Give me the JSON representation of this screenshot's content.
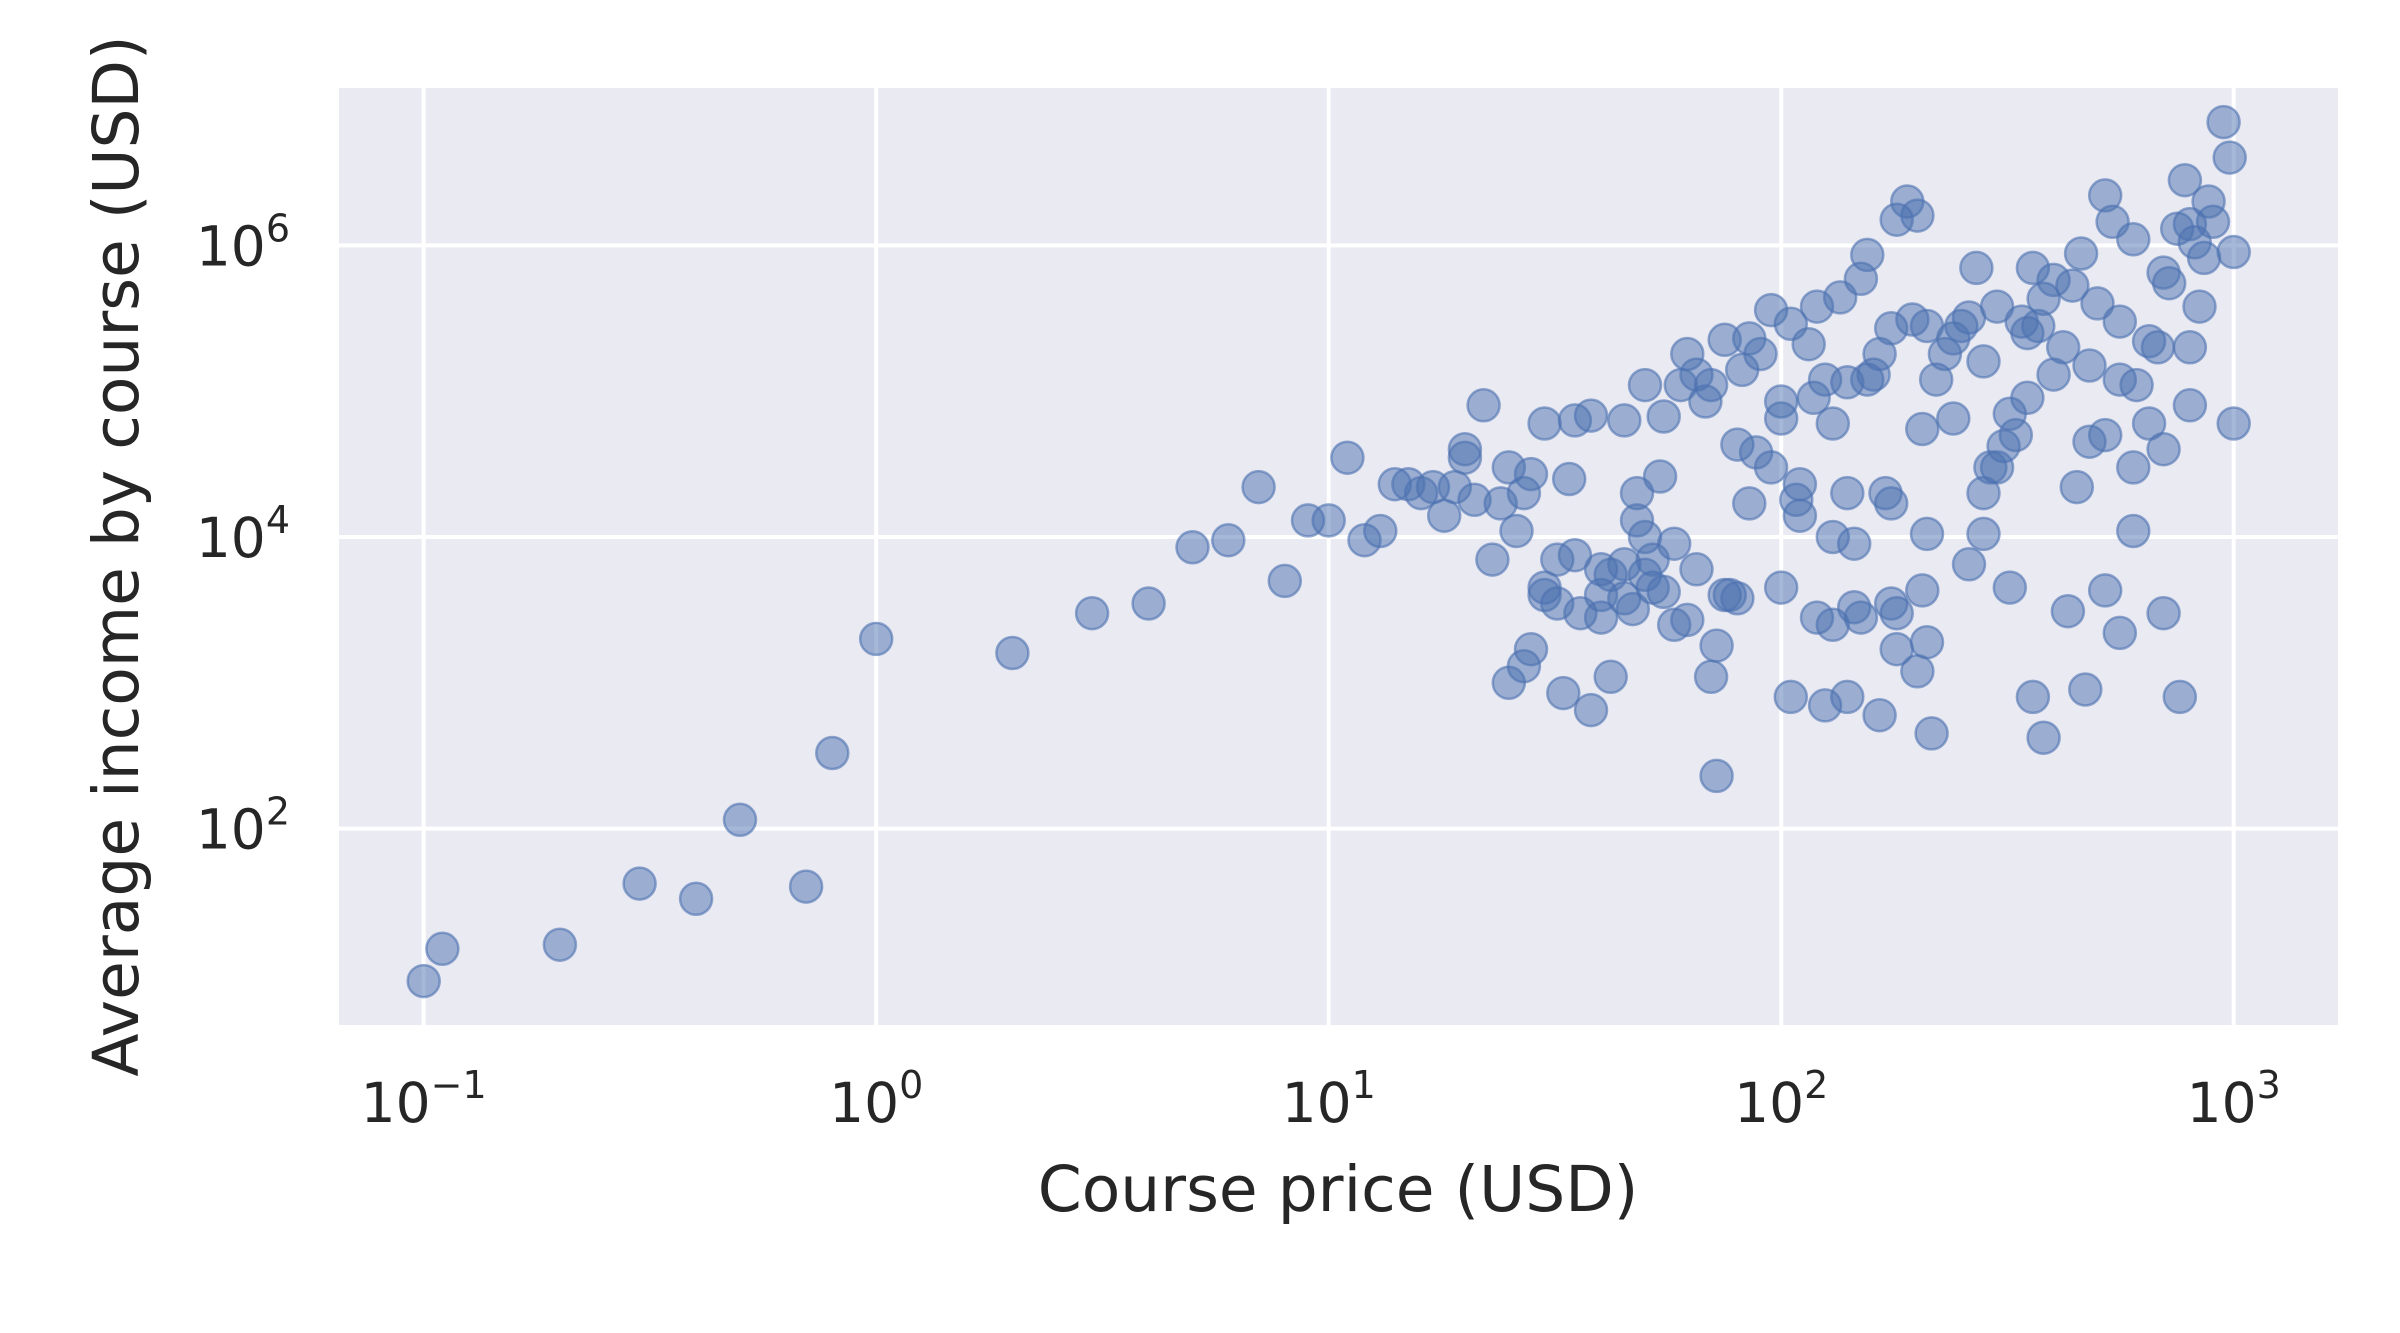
{
  "chart_data": {
    "type": "scatter",
    "title": "",
    "xlabel": "Course price (USD)",
    "ylabel": "Average income by course (USD)",
    "x_scale": "log",
    "y_scale": "log",
    "xlim": [
      0.065,
      1700
    ],
    "ylim": [
      4.5,
      12000000
    ],
    "x_ticks": [
      0.1,
      1,
      10,
      100,
      1000
    ],
    "x_tick_labels": [
      {
        "base": "10",
        "exp": "−1"
      },
      {
        "base": "10",
        "exp": "0"
      },
      {
        "base": "10",
        "exp": "1"
      },
      {
        "base": "10",
        "exp": "2"
      },
      {
        "base": "10",
        "exp": "3"
      }
    ],
    "y_ticks": [
      100,
      10000,
      1000000
    ],
    "y_tick_labels": [
      {
        "base": "10",
        "exp": "2"
      },
      {
        "base": "10",
        "exp": "4"
      },
      {
        "base": "10",
        "exp": "6"
      }
    ],
    "grid": true,
    "colors": {
      "background": "#eaeaf2",
      "grid": "#ffffff",
      "marker": "#4c72b0",
      "text": "#262626"
    },
    "marker_alpha": 0.5,
    "points": [
      [
        0.1,
        9
      ],
      [
        0.11,
        15
      ],
      [
        0.2,
        16
      ],
      [
        0.3,
        42
      ],
      [
        0.4,
        33
      ],
      [
        0.5,
        115
      ],
      [
        0.7,
        40
      ],
      [
        0.8,
        330
      ],
      [
        1,
        2000
      ],
      [
        2,
        1600
      ],
      [
        3,
        3000
      ],
      [
        4,
        3500
      ],
      [
        5,
        8500
      ],
      [
        6,
        9500
      ],
      [
        7,
        22000
      ],
      [
        8,
        5000
      ],
      [
        9,
        13000
      ],
      [
        10,
        13000
      ],
      [
        11,
        35000
      ],
      [
        12,
        9500
      ],
      [
        13,
        11000
      ],
      [
        14,
        23000
      ],
      [
        15,
        23000
      ],
      [
        16,
        20000
      ],
      [
        17,
        22000
      ],
      [
        18,
        14000
      ],
      [
        19,
        22000
      ],
      [
        20,
        40000
      ],
      [
        20,
        35000
      ],
      [
        21,
        18000
      ],
      [
        22,
        80000
      ],
      [
        23,
        7000
      ],
      [
        24,
        17000
      ],
      [
        25,
        30000
      ],
      [
        26,
        11000
      ],
      [
        27,
        20000
      ],
      [
        28,
        27000
      ],
      [
        30,
        60000
      ],
      [
        32,
        7000
      ],
      [
        34,
        25000
      ],
      [
        35,
        63000
      ],
      [
        38,
        68000
      ],
      [
        40,
        4000
      ],
      [
        42,
        5500
      ],
      [
        45,
        63000
      ],
      [
        48,
        20000
      ],
      [
        50,
        110000
      ],
      [
        52,
        7000
      ],
      [
        54,
        26000
      ],
      [
        55,
        67000
      ],
      [
        58,
        9000
      ],
      [
        60,
        110000
      ],
      [
        62,
        180000
      ],
      [
        65,
        130000
      ],
      [
        68,
        85000
      ],
      [
        70,
        110000
      ],
      [
        72,
        230
      ],
      [
        75,
        225000
      ],
      [
        77,
        4000
      ],
      [
        80,
        43000
      ],
      [
        82,
        140000
      ],
      [
        85,
        230000
      ],
      [
        88,
        38000
      ],
      [
        90,
        180000
      ],
      [
        95,
        360000
      ],
      [
        100,
        65000
      ],
      [
        100,
        85000
      ],
      [
        105,
        290000
      ],
      [
        108,
        18000
      ],
      [
        110,
        23000
      ],
      [
        115,
        210000
      ],
      [
        118,
        90000
      ],
      [
        120,
        380000
      ],
      [
        125,
        120000
      ],
      [
        130,
        10000
      ],
      [
        135,
        440000
      ],
      [
        140,
        115000
      ],
      [
        145,
        9000
      ],
      [
        150,
        590000
      ],
      [
        155,
        860000
      ],
      [
        160,
        130000
      ],
      [
        165,
        180000
      ],
      [
        170,
        20000
      ],
      [
        175,
        270000
      ],
      [
        180,
        1500000
      ],
      [
        190,
        2000000
      ],
      [
        195,
        310000
      ],
      [
        200,
        1600000
      ],
      [
        205,
        55000
      ],
      [
        210,
        280000
      ],
      [
        220,
        120000
      ],
      [
        230,
        180000
      ],
      [
        240,
        230000
      ],
      [
        250,
        280000
      ],
      [
        260,
        320000
      ],
      [
        270,
        700000
      ],
      [
        280,
        160000
      ],
      [
        290,
        30000
      ],
      [
        300,
        380000
      ],
      [
        310,
        42000
      ],
      [
        320,
        70000
      ],
      [
        340,
        300000
      ],
      [
        350,
        90000
      ],
      [
        360,
        700000
      ],
      [
        370,
        280000
      ],
      [
        380,
        430000
      ],
      [
        400,
        580000
      ],
      [
        420,
        200000
      ],
      [
        440,
        530000
      ],
      [
        460,
        880000
      ],
      [
        480,
        45000
      ],
      [
        500,
        400000
      ],
      [
        520,
        2200000
      ],
      [
        540,
        1450000
      ],
      [
        560,
        300000
      ],
      [
        600,
        1100000
      ],
      [
        610,
        110000
      ],
      [
        650,
        220000
      ],
      [
        680,
        200000
      ],
      [
        700,
        650000
      ],
      [
        720,
        550000
      ],
      [
        750,
        1300000
      ],
      [
        780,
        2800000
      ],
      [
        800,
        1400000
      ],
      [
        820,
        1050000
      ],
      [
        840,
        380000
      ],
      [
        860,
        820000
      ],
      [
        880,
        2000000
      ],
      [
        900,
        1450000
      ],
      [
        950,
        7000000
      ],
      [
        980,
        4000000
      ],
      [
        1000,
        900000
      ],
      [
        1000,
        60000
      ],
      [
        25,
        1000
      ],
      [
        27,
        1300
      ],
      [
        28,
        1700
      ],
      [
        30,
        4000
      ],
      [
        32,
        3500
      ],
      [
        33,
        850
      ],
      [
        36,
        3000
      ],
      [
        38,
        650
      ],
      [
        40,
        2800
      ],
      [
        42,
        1100
      ],
      [
        45,
        3800
      ],
      [
        47,
        3200
      ],
      [
        50,
        5500
      ],
      [
        52,
        4500
      ],
      [
        55,
        4200
      ],
      [
        58,
        2500
      ],
      [
        62,
        2700
      ],
      [
        65,
        6000
      ],
      [
        70,
        1100
      ],
      [
        72,
        1800
      ],
      [
        75,
        4000
      ],
      [
        80,
        3800
      ],
      [
        100,
        4500
      ],
      [
        105,
        800
      ],
      [
        120,
        2800
      ],
      [
        125,
        700
      ],
      [
        130,
        2500
      ],
      [
        140,
        800
      ],
      [
        145,
        3300
      ],
      [
        150,
        2800
      ],
      [
        165,
        600
      ],
      [
        175,
        3500
      ],
      [
        180,
        1700
      ],
      [
        200,
        1200
      ],
      [
        205,
        4300
      ],
      [
        210,
        1900
      ],
      [
        215,
        450
      ],
      [
        260,
        6500
      ],
      [
        280,
        10500
      ],
      [
        320,
        4500
      ],
      [
        360,
        800
      ],
      [
        380,
        420
      ],
      [
        430,
        3100
      ],
      [
        470,
        900
      ],
      [
        520,
        4300
      ],
      [
        560,
        2200
      ],
      [
        600,
        11000
      ],
      [
        700,
        3000
      ],
      [
        760,
        800
      ],
      [
        30,
        4500
      ],
      [
        35,
        7500
      ],
      [
        40,
        6000
      ],
      [
        45,
        6500
      ],
      [
        48,
        13000
      ],
      [
        50,
        10000
      ],
      [
        85,
        17000
      ],
      [
        95,
        30000
      ],
      [
        110,
        14000
      ],
      [
        130,
        60000
      ],
      [
        140,
        20000
      ],
      [
        155,
        120000
      ],
      [
        175,
        17000
      ],
      [
        210,
        10500
      ],
      [
        240,
        65000
      ],
      [
        280,
        20000
      ],
      [
        300,
        30000
      ],
      [
        330,
        50000
      ],
      [
        450,
        22000
      ],
      [
        520,
        50000
      ],
      [
        560,
        120000
      ],
      [
        600,
        30000
      ],
      [
        650,
        60000
      ],
      [
        700,
        40000
      ],
      [
        800,
        80000
      ],
      [
        800,
        200000
      ],
      [
        350,
        250000
      ],
      [
        400,
        130000
      ],
      [
        480,
        150000
      ],
      [
        180,
        3000
      ]
    ]
  }
}
